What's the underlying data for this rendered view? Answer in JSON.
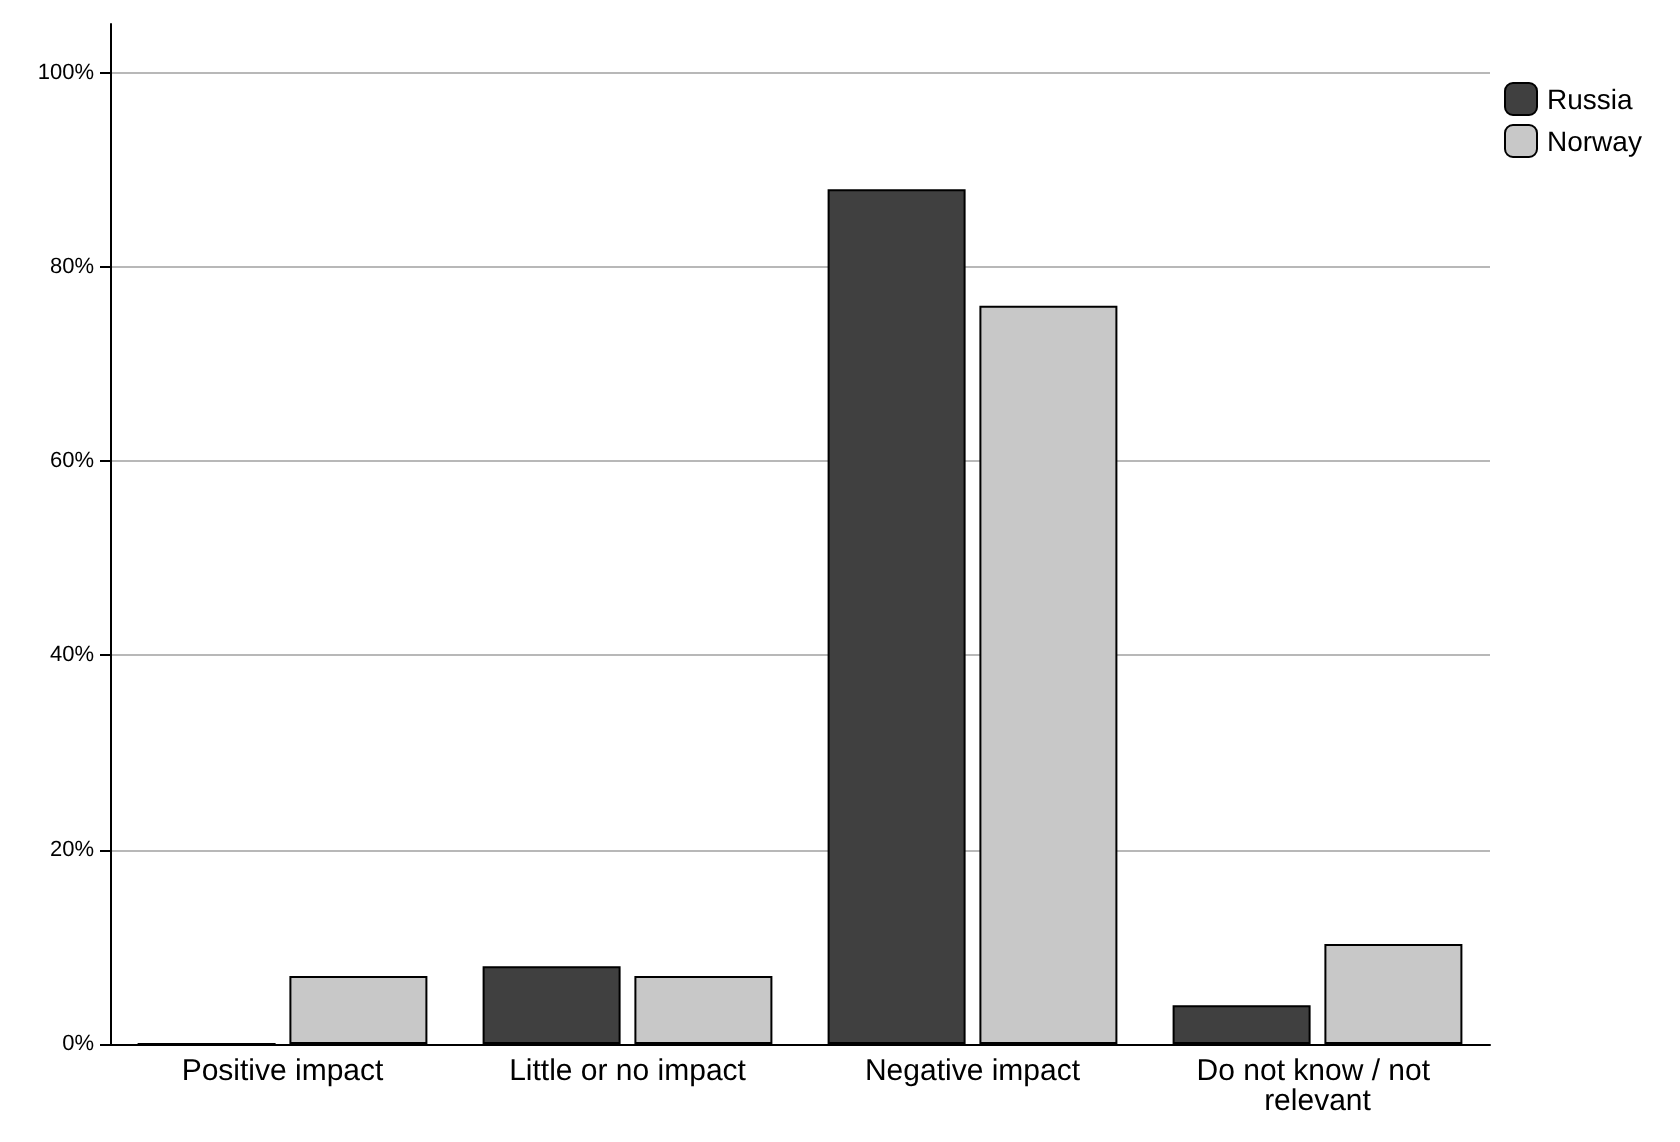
{
  "chart_data": {
    "type": "bar",
    "categories": [
      "Positive impact",
      "Little or no impact",
      "Negative impact",
      "Do not know / not relevant"
    ],
    "series": [
      {
        "name": "Russia",
        "color": "#404040",
        "values": [
          0,
          8,
          88,
          4
        ]
      },
      {
        "name": "Norway",
        "color": "#c8c8c8",
        "values": [
          7,
          7,
          76,
          10.3
        ]
      }
    ],
    "ylim": [
      0,
      105
    ],
    "yticks": [
      {
        "value": 0,
        "label": "0%"
      },
      {
        "value": 20,
        "label": "20%"
      },
      {
        "value": 40,
        "label": "40%"
      },
      {
        "value": 60,
        "label": "60%"
      },
      {
        "value": 80,
        "label": "80%"
      },
      {
        "value": 100,
        "label": "100%"
      }
    ],
    "grid": "y",
    "legend": "top right"
  }
}
